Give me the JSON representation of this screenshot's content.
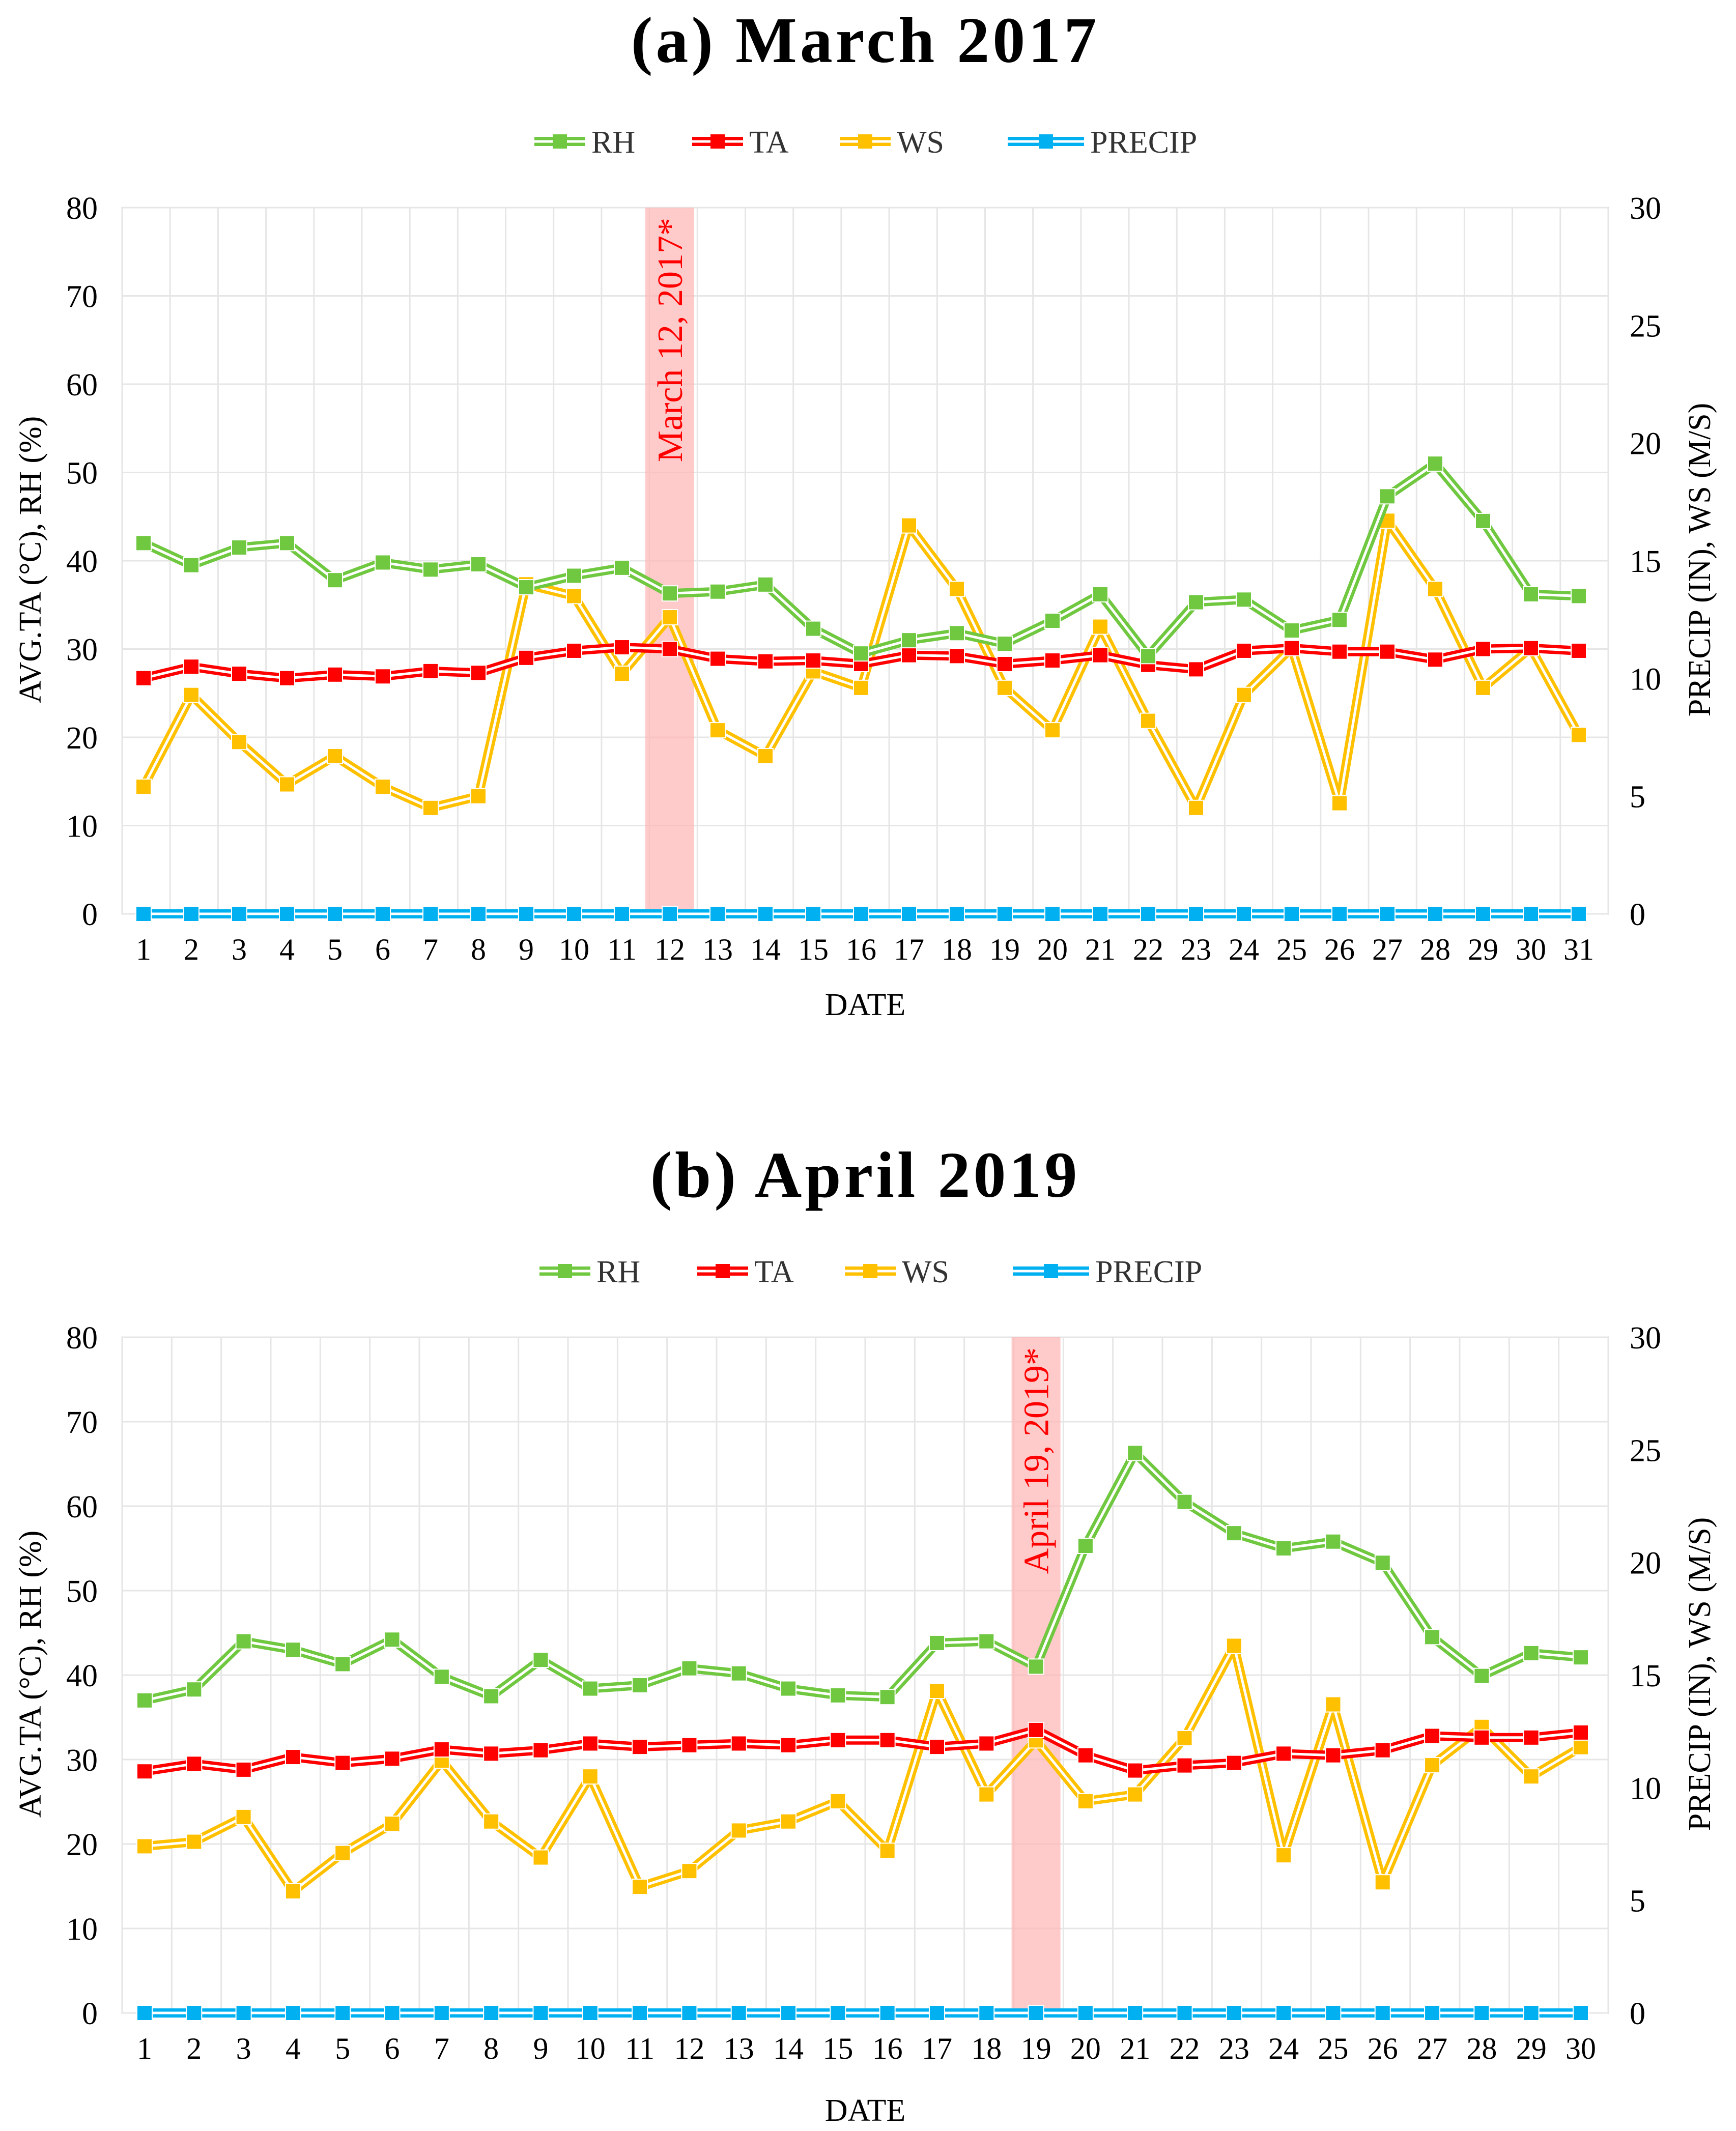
{
  "chart_data": [
    {
      "type": "line",
      "title": "(a) March 2017",
      "xlabel": "DATE",
      "ylabel_left": "AVG.TA (°C), RH (%)",
      "ylabel_right": "PRECIP (IN), WS (M/S)",
      "left_ylim": [
        0,
        80
      ],
      "left_ticks": [
        "0",
        "10",
        "20",
        "30",
        "40",
        "50",
        "60",
        "70",
        "80"
      ],
      "right_ylim": [
        0,
        30
      ],
      "right_ticks": [
        "0",
        "5",
        "10",
        "15",
        "20",
        "25",
        "30"
      ],
      "categories": [
        "1",
        "2",
        "3",
        "4",
        "5",
        "6",
        "7",
        "8",
        "9",
        "10",
        "11",
        "12",
        "13",
        "14",
        "15",
        "16",
        "17",
        "18",
        "19",
        "20",
        "21",
        "22",
        "23",
        "24",
        "25",
        "26",
        "27",
        "28",
        "29",
        "30",
        "31"
      ],
      "highlight": {
        "category": "12",
        "label": "March 12, 2017*"
      },
      "grid": true,
      "legend_position": "top-center",
      "series": [
        {
          "name": "RH",
          "axis": "left",
          "color": "#70c840",
          "values": [
            42.0,
            39.5,
            41.5,
            42.0,
            37.8,
            39.8,
            39.0,
            39.6,
            37.0,
            38.3,
            39.2,
            36.3,
            36.5,
            37.3,
            32.3,
            29.5,
            31.0,
            31.8,
            30.6,
            33.2,
            36.2,
            29.2,
            35.3,
            35.6,
            32.1,
            33.3,
            47.3,
            51.0,
            44.5,
            36.2,
            36.0
          ]
        },
        {
          "name": "TA",
          "axis": "left",
          "color": "#ff0000",
          "values": [
            26.7,
            28.0,
            27.2,
            26.7,
            27.1,
            26.9,
            27.5,
            27.3,
            29.0,
            29.8,
            30.2,
            30.0,
            28.9,
            28.6,
            28.7,
            28.3,
            29.3,
            29.2,
            28.3,
            28.7,
            29.3,
            28.2,
            27.7,
            29.8,
            30.1,
            29.7,
            29.7,
            28.8,
            30.0,
            30.1,
            29.8
          ]
        },
        {
          "name": "WS",
          "axis": "right",
          "color": "#ffc000",
          "values": [
            5.4,
            9.3,
            7.3,
            5.5,
            6.7,
            5.4,
            4.5,
            5.0,
            14.0,
            13.5,
            10.2,
            12.6,
            7.8,
            6.7,
            10.3,
            9.6,
            16.5,
            13.8,
            9.6,
            7.8,
            12.2,
            8.2,
            4.5,
            9.3,
            11.3,
            4.7,
            16.7,
            13.8,
            9.6,
            11.3,
            7.6
          ]
        },
        {
          "name": "PRECIP",
          "axis": "right",
          "color": "#00b0f0",
          "values": [
            0,
            0,
            0,
            0,
            0,
            0,
            0,
            0,
            0,
            0,
            0,
            0,
            0,
            0,
            0,
            0,
            0,
            0,
            0,
            0,
            0,
            0,
            0,
            0,
            0,
            0,
            0,
            0,
            0,
            0,
            0
          ]
        }
      ]
    },
    {
      "type": "line",
      "title": "(b) April 2019",
      "xlabel": "DATE",
      "ylabel_left": "AVG.TA (°C), RH (%)",
      "ylabel_right": "PRECIP (IN), WS (M/S)",
      "left_ylim": [
        0,
        80
      ],
      "left_ticks": [
        "0",
        "10",
        "20",
        "30",
        "40",
        "50",
        "60",
        "70",
        "80"
      ],
      "right_ylim": [
        0,
        30
      ],
      "right_ticks": [
        "0",
        "5",
        "10",
        "15",
        "20",
        "25",
        "30"
      ],
      "categories": [
        "1",
        "2",
        "3",
        "4",
        "5",
        "6",
        "7",
        "8",
        "9",
        "10",
        "11",
        "12",
        "13",
        "14",
        "15",
        "16",
        "17",
        "18",
        "19",
        "20",
        "21",
        "22",
        "23",
        "24",
        "25",
        "26",
        "27",
        "28",
        "29",
        "30"
      ],
      "highlight": {
        "category": "19",
        "label": "April 19, 2019*"
      },
      "grid": true,
      "legend_position": "top-center",
      "series": [
        {
          "name": "RH",
          "axis": "left",
          "color": "#70c840",
          "values": [
            37.0,
            38.3,
            44.0,
            43.0,
            41.3,
            44.2,
            39.8,
            37.5,
            41.8,
            38.4,
            38.8,
            40.8,
            40.2,
            38.4,
            37.6,
            37.4,
            43.8,
            44.0,
            41.0,
            55.3,
            66.3,
            60.5,
            56.8,
            55.0,
            55.8,
            53.3,
            44.5,
            39.9,
            42.6,
            42.1
          ]
        },
        {
          "name": "TA",
          "axis": "left",
          "color": "#ff0000",
          "values": [
            28.6,
            29.5,
            28.8,
            30.3,
            29.6,
            30.1,
            31.2,
            30.7,
            31.1,
            31.9,
            31.5,
            31.7,
            31.9,
            31.7,
            32.3,
            32.3,
            31.5,
            31.9,
            33.5,
            30.5,
            28.7,
            29.3,
            29.6,
            30.7,
            30.5,
            31.1,
            32.8,
            32.6,
            32.6,
            33.2
          ]
        },
        {
          "name": "WS",
          "axis": "right",
          "color": "#ffc000",
          "values": [
            7.4,
            7.6,
            8.7,
            5.4,
            7.1,
            8.4,
            11.2,
            8.5,
            6.9,
            10.5,
            5.6,
            6.3,
            8.1,
            8.5,
            9.4,
            7.2,
            14.3,
            9.7,
            12.1,
            9.4,
            9.7,
            12.2,
            16.3,
            7.0,
            13.7,
            5.8,
            11.0,
            12.7,
            10.5,
            11.8
          ]
        },
        {
          "name": "PRECIP",
          "axis": "right",
          "color": "#00b0f0",
          "values": [
            0,
            0,
            0,
            0,
            0,
            0,
            0,
            0,
            0,
            0,
            0,
            0,
            0,
            0,
            0,
            0,
            0,
            0,
            0,
            0,
            0,
            0,
            0,
            0,
            0,
            0,
            0,
            0,
            0,
            0
          ]
        }
      ]
    }
  ]
}
